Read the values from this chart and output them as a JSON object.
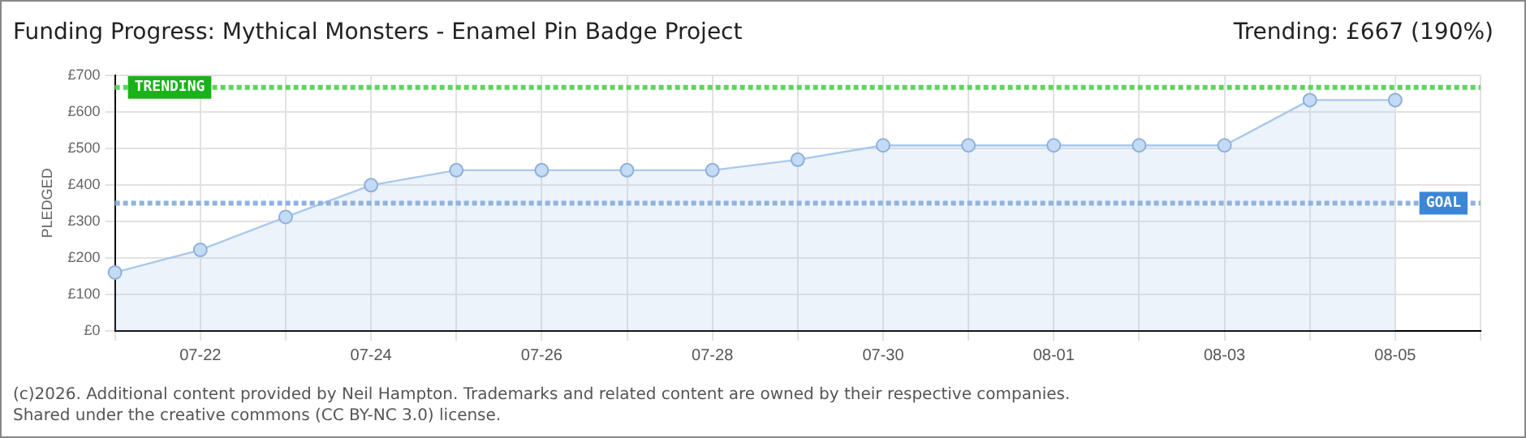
{
  "chart_data": {
    "type": "area",
    "title": "Funding Progress: Mythical Monsters - Enamel Pin Badge Project",
    "ylabel": "PLEDGED",
    "categories": [
      null,
      "07-22",
      null,
      "07-24",
      null,
      "07-26",
      null,
      "07-28",
      null,
      "07-30",
      null,
      "08-01",
      null,
      "08-03",
      null,
      "08-05",
      null
    ],
    "series": [
      {
        "color": "#a9c8ec",
        "values": [
          160,
          222,
          312,
          399,
          440,
          440,
          440,
          440,
          469,
          508,
          508,
          508,
          508,
          508,
          632,
          632,
          null
        ]
      }
    ],
    "ylim": [
      0,
      700
    ],
    "yticks": [
      {
        "value": 0,
        "label": "£0"
      },
      {
        "value": 100,
        "label": "£100"
      },
      {
        "value": 200,
        "label": "£200"
      },
      {
        "value": 300,
        "label": "£300"
      },
      {
        "value": 400,
        "label": "£400"
      },
      {
        "value": 500,
        "label": "£500"
      },
      {
        "value": 600,
        "label": "£600"
      },
      {
        "value": 700,
        "label": "£700"
      }
    ],
    "ref_lines": [
      {
        "axis": "y",
        "value": 667,
        "label": "TRENDING",
        "color": "#5fd35f",
        "line_style": "dotted"
      },
      {
        "axis": "y",
        "value": 350,
        "label": "GOAL",
        "color": "#8fb3df",
        "line_style": "dotted"
      }
    ],
    "annotations": [
      "Trending:  £667 (190%)",
      "(c)2026. Additional content provided by Neil Hampton. Trademarks and related content are owned by their respective companies.",
      "Shared under the creative commons (CC BY-NC 3.0) license."
    ],
    "grid": true,
    "legend": false,
    "marker": "circle",
    "line_style": "solid"
  }
}
